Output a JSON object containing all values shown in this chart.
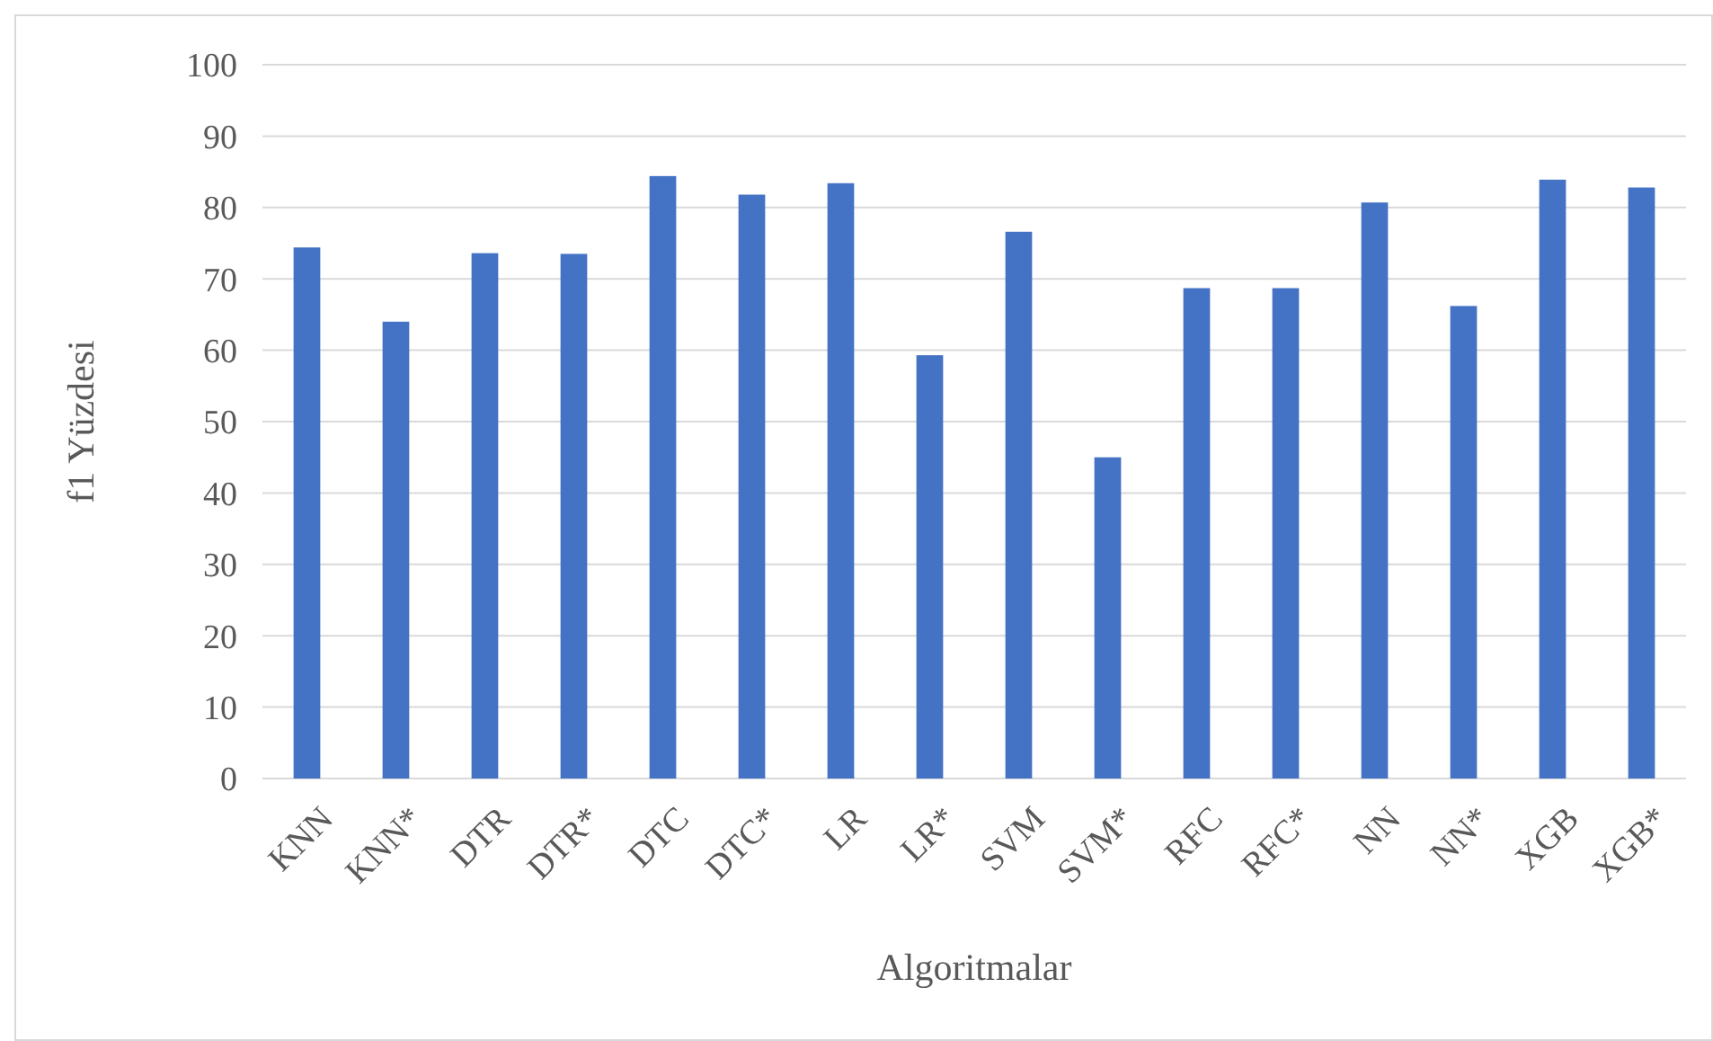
{
  "chart_data": {
    "type": "bar",
    "xlabel": "Algoritmalar",
    "ylabel": "f1 Yüzdesi",
    "categories": [
      "KNN",
      "KNN*",
      "DTR",
      "DTR*",
      "DTC",
      "DTC*",
      "LR",
      "LR*",
      "SVM",
      "SVM*",
      "RFC",
      "RFC*",
      "NN",
      "NN*",
      "XGB",
      "XGB*"
    ],
    "values": [
      74.4,
      64.0,
      73.6,
      73.5,
      84.4,
      81.8,
      83.4,
      59.3,
      76.6,
      45.0,
      68.7,
      68.7,
      80.7,
      66.2,
      83.9,
      82.8
    ],
    "color": "#4472c4",
    "ylim": [
      0,
      100
    ],
    "yticks": [
      0,
      10,
      20,
      30,
      40,
      50,
      60,
      70,
      80,
      90,
      100
    ],
    "grid": "y"
  }
}
